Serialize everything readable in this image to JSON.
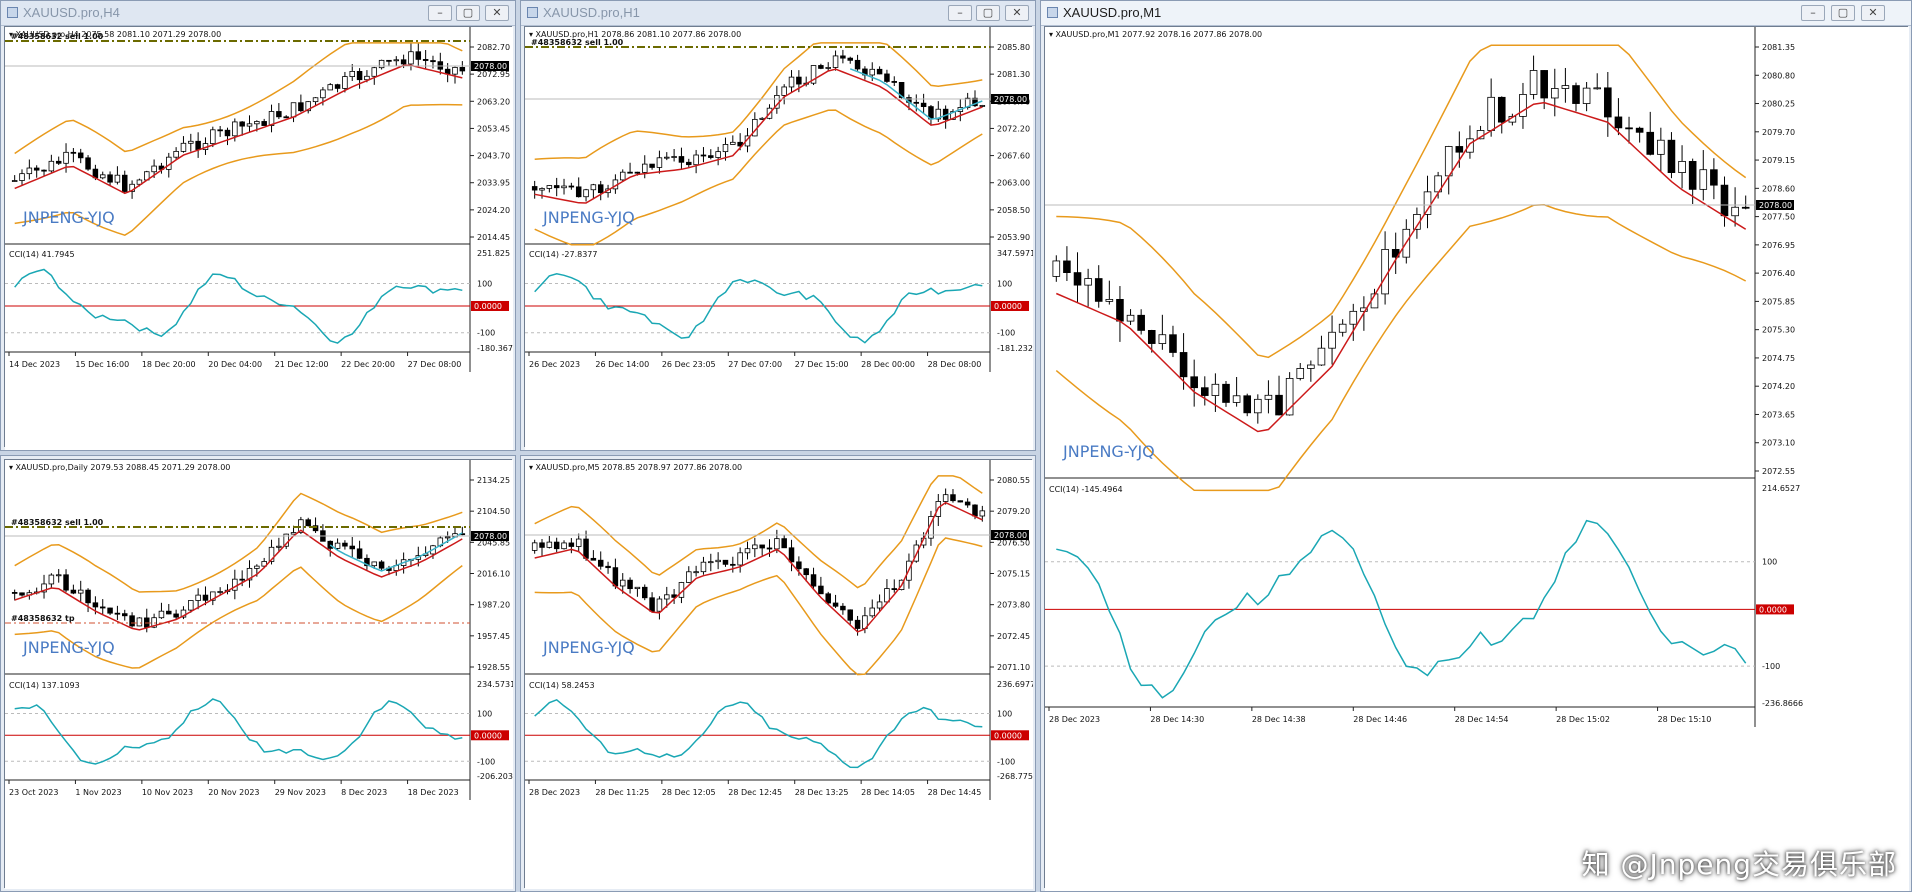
{
  "windows": [
    {
      "id": "h4",
      "title": "XAUUSD.pro,H4",
      "active": false,
      "info": "▾ XAUUSD.pro,H4  2075.58 2081.10 2071.29 2078.00",
      "order_label": "#48358632 sell 1.00",
      "order_label2": "",
      "price_label": "2078.00",
      "price_ticks": [
        "2082.70",
        "2072.95",
        "2063.20",
        "2053.45",
        "2043.70",
        "2033.95",
        "2024.20",
        "2014.45"
      ],
      "cci_label": "CCI(14) 41.7945",
      "cci_ticks": [
        "251.825",
        "100",
        "-100",
        "-180.3673"
      ],
      "cci_zero": "0.0000",
      "time_ticks": [
        "14 Dec 2023",
        "15 Dec 16:00",
        "18 Dec 20:00",
        "20 Dec 04:00",
        "21 Dec 12:00",
        "22 Dec 20:00",
        "27 Dec 08:00"
      ],
      "watermark": "JNPENG-YJQ"
    },
    {
      "id": "h1",
      "title": "XAUUSD.pro,H1",
      "active": false,
      "info": "▾ XAUUSD.pro,H1  2078.86 2081.10 2077.86 2078.00",
      "order_label": "#48358632 sell 1.00",
      "order_label2": "",
      "price_label": "2078.00",
      "price_ticks": [
        "2085.80",
        "2081.30",
        "2076.70",
        "2072.20",
        "2067.60",
        "2063.00",
        "2058.50",
        "2053.90"
      ],
      "cci_label": "CCI(14) -27.8377",
      "cci_ticks": [
        "347.5971",
        "100",
        "-100",
        "-181.2329"
      ],
      "cci_zero": "0.0000",
      "time_ticks": [
        "26 Dec 2023",
        "26 Dec 14:00",
        "26 Dec 23:05",
        "27 Dec 07:00",
        "27 Dec 15:00",
        "28 Dec 00:00",
        "28 Dec 08:00"
      ],
      "watermark": "JNPENG-YJQ"
    },
    {
      "id": "m1",
      "title": "XAUUSD.pro,M1",
      "active": true,
      "info": "▾ XAUUSD.pro,M1  2077.92 2078.16 2077.86 2078.00",
      "order_label": "",
      "order_label2": "",
      "price_label": "2078.00",
      "price_ticks": [
        "2081.35",
        "2080.80",
        "2080.25",
        "2079.70",
        "2079.15",
        "2078.60",
        "2077.50",
        "2076.95",
        "2076.40",
        "2075.85",
        "2075.30",
        "2074.75",
        "2074.20",
        "2073.65",
        "2073.10",
        "2072.55"
      ],
      "cci_label": "CCI(14) -145.4964",
      "cci_ticks": [
        "214.6527",
        "100",
        "-100",
        "-236.8666"
      ],
      "cci_zero": "0.0000",
      "time_ticks": [
        "28 Dec 2023",
        "28 Dec 14:30",
        "28 Dec 14:38",
        "28 Dec 14:46",
        "28 Dec 14:54",
        "28 Dec 15:02",
        "28 Dec 15:10"
      ],
      "watermark": "JNPENG-YJQ"
    },
    {
      "id": "d1",
      "title": "XAUUSD.pro,Daily",
      "active": false,
      "info": "▾ XAUUSD.pro,Daily  2079.53 2088.45 2071.29 2078.00",
      "order_label": "#48358632 sell 1.00",
      "order_label2": "#48358632 tp",
      "price_label": "2078.00",
      "price_ticks": [
        "2134.25",
        "2104.50",
        "2045.85",
        "2016.10",
        "1987.20",
        "1957.45",
        "1928.55"
      ],
      "cci_label": "CCI(14) 137.1093",
      "cci_ticks": [
        "234.5731",
        "100",
        "-100",
        "-206.2036"
      ],
      "cci_zero": "0.0000",
      "time_ticks": [
        "23 Oct 2023",
        "1 Nov 2023",
        "10 Nov 2023",
        "20 Nov 2023",
        "29 Nov 2023",
        "8 Dec 2023",
        "18 Dec 2023"
      ],
      "watermark": "JNPENG-YJQ"
    },
    {
      "id": "m5",
      "title": "",
      "active": false,
      "info": "▾ XAUUSD.pro,M5  2078.85 2078.97 2077.86 2078.00",
      "order_label": "",
      "order_label2": "",
      "price_label": "2078.00",
      "price_ticks": [
        "2080.55",
        "2079.20",
        "2076.50",
        "2075.15",
        "2073.80",
        "2072.45",
        "2071.10"
      ],
      "cci_label": "CCI(14) 58.2453",
      "cci_ticks": [
        "236.6977",
        "100",
        "-100",
        "-268.7752"
      ],
      "cci_zero": "0.0000",
      "time_ticks": [
        "28 Dec 2023",
        "28 Dec 11:25",
        "28 Dec 12:05",
        "28 Dec 12:45",
        "28 Dec 13:25",
        "28 Dec 14:05",
        "28 Dec 14:45"
      ],
      "watermark": "JNPENG-YJQ"
    }
  ],
  "corner_watermark": "知 @Jnpeng交易俱乐部",
  "colors": {
    "bb": "#e89a1c",
    "ma": "#cc1a1a",
    "cyan": "#38b2c8",
    "cci": "#1aa7b4",
    "order": "#6b6a00",
    "zero": "#cc0000"
  }
}
